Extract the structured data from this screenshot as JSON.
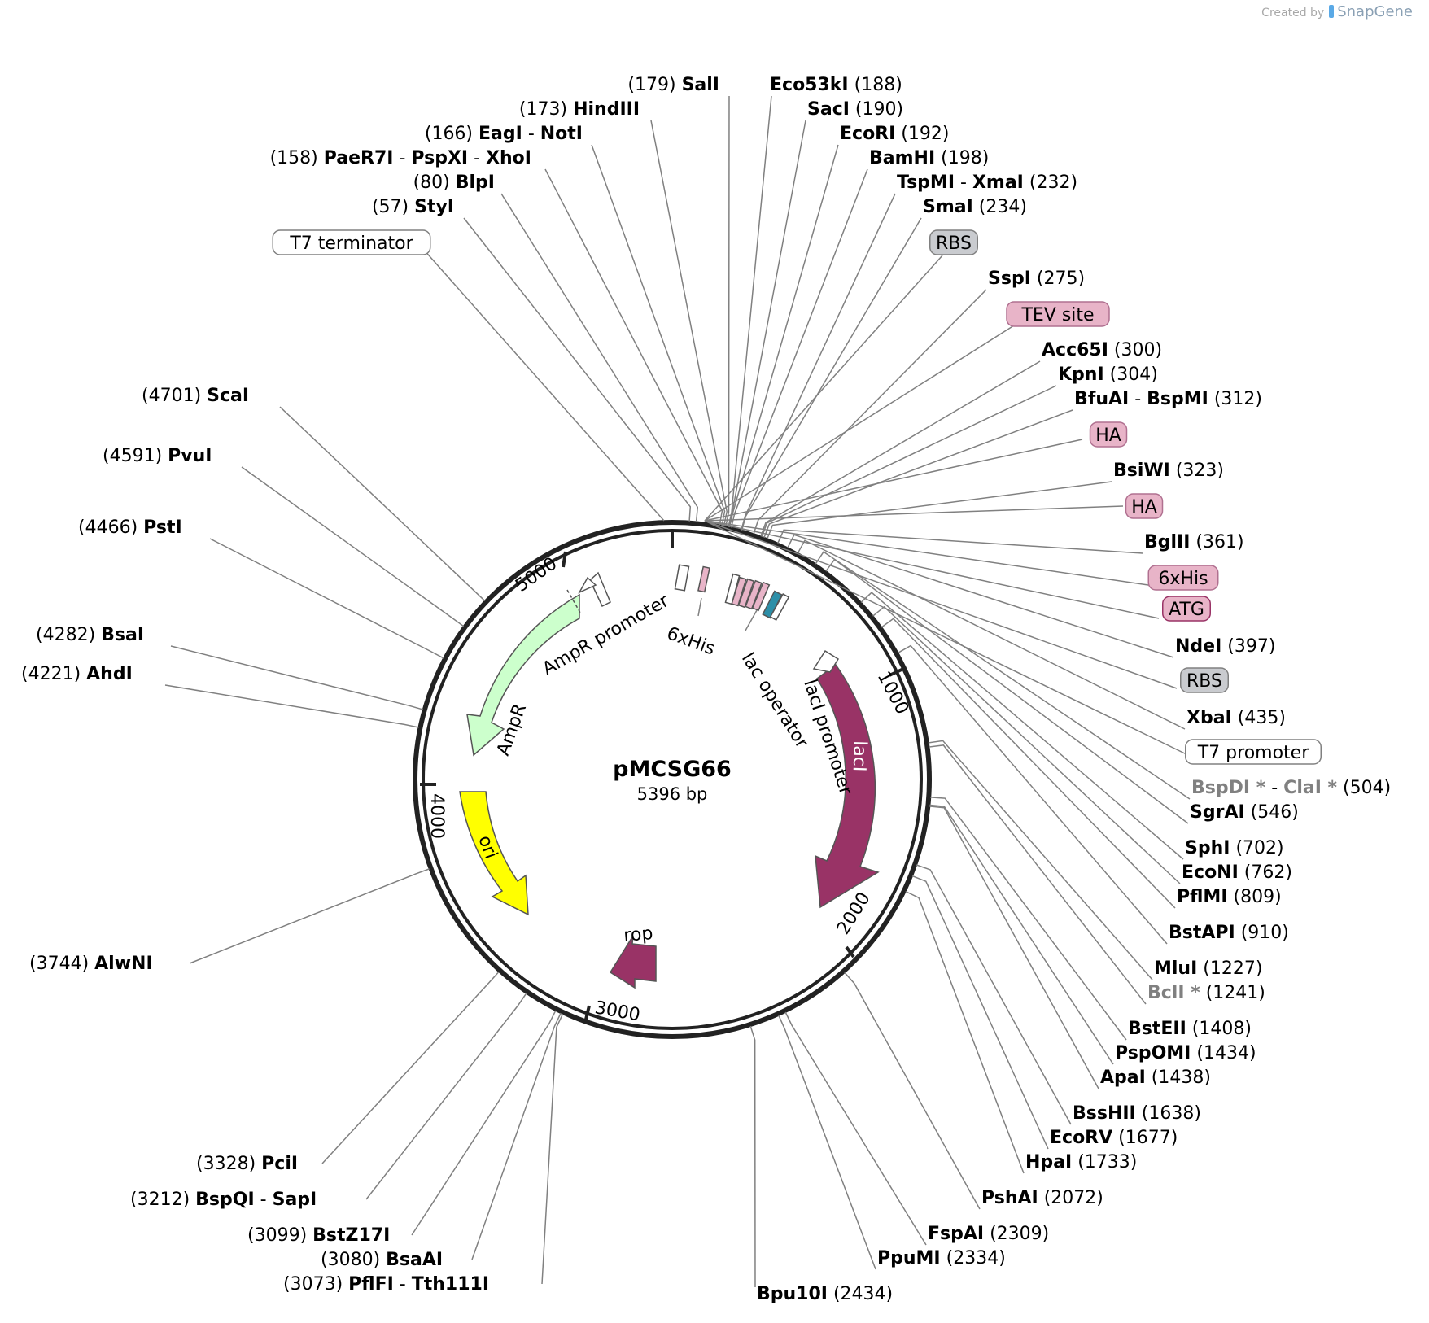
{
  "credit": {
    "prefix": "Created by",
    "brand": "SnapGene"
  },
  "plasmid": {
    "name": "pMCSG66",
    "size": "5396 bp"
  },
  "ticks": [
    "1000",
    "2000",
    "3000",
    "4000",
    "5000"
  ],
  "features": [
    {
      "name": "AmpR",
      "type": "CDS",
      "color": "#ccffcc"
    },
    {
      "name": "AmpR promoter",
      "type": "promoter"
    },
    {
      "name": "ori",
      "type": "rep_origin",
      "color": "#ffff00"
    },
    {
      "name": "rop",
      "type": "CDS",
      "color": "#993366"
    },
    {
      "name": "lacI",
      "type": "CDS",
      "color": "#993366"
    },
    {
      "name": "lacI promoter",
      "type": "promoter"
    },
    {
      "name": "lac operator",
      "type": "protein_bind"
    },
    {
      "name": "6xHis",
      "type": "tag"
    }
  ],
  "feature_labels": [
    {
      "text": "T7 terminator",
      "style": "white"
    },
    {
      "text": "RBS",
      "style": "gray"
    },
    {
      "text": "TEV site",
      "style": "pink"
    },
    {
      "text": "HA",
      "style": "pink"
    },
    {
      "text": "HA",
      "style": "pink"
    },
    {
      "text": "6xHis",
      "style": "pink"
    },
    {
      "text": "ATG",
      "style": "pinkdark"
    },
    {
      "text": "RBS",
      "style": "gray"
    },
    {
      "text": "T7 promoter",
      "style": "white"
    }
  ],
  "sites": [
    {
      "parts": [
        "SalI"
      ],
      "pos": "(179)"
    },
    {
      "parts": [
        "HindIII"
      ],
      "pos": "(173)"
    },
    {
      "parts": [
        "EagI",
        "NotI"
      ],
      "pos": "(166)"
    },
    {
      "parts": [
        "PaeR7I",
        "PspXI",
        "XhoI"
      ],
      "pos": "(158)"
    },
    {
      "parts": [
        "BlpI"
      ],
      "pos": "(80)"
    },
    {
      "parts": [
        "StyI"
      ],
      "pos": "(57)"
    },
    {
      "parts": [
        "Eco53kI"
      ],
      "pos": "(188)"
    },
    {
      "parts": [
        "SacI"
      ],
      "pos": "(190)"
    },
    {
      "parts": [
        "EcoRI"
      ],
      "pos": "(192)"
    },
    {
      "parts": [
        "BamHI"
      ],
      "pos": "(198)"
    },
    {
      "parts": [
        "TspMI",
        "XmaI"
      ],
      "pos": "(232)"
    },
    {
      "parts": [
        "SmaI"
      ],
      "pos": "(234)"
    },
    {
      "parts": [
        "SspI"
      ],
      "pos": "(275)"
    },
    {
      "parts": [
        "Acc65I"
      ],
      "pos": "(300)"
    },
    {
      "parts": [
        "KpnI"
      ],
      "pos": "(304)"
    },
    {
      "parts": [
        "BfuAI",
        "BspMI"
      ],
      "pos": "(312)"
    },
    {
      "parts": [
        "BsiWI"
      ],
      "pos": "(323)"
    },
    {
      "parts": [
        "BglII"
      ],
      "pos": "(361)"
    },
    {
      "parts": [
        "NdeI"
      ],
      "pos": "(397)"
    },
    {
      "parts": [
        "XbaI"
      ],
      "pos": "(435)"
    },
    {
      "parts": [
        "BspDI *",
        "ClaI *"
      ],
      "pos": "(504)",
      "gray": true
    },
    {
      "parts": [
        "SgrAI"
      ],
      "pos": "(546)"
    },
    {
      "parts": [
        "SphI"
      ],
      "pos": "(702)"
    },
    {
      "parts": [
        "EcoNI"
      ],
      "pos": "(762)"
    },
    {
      "parts": [
        "PflMI"
      ],
      "pos": "(809)"
    },
    {
      "parts": [
        "BstAPI"
      ],
      "pos": "(910)"
    },
    {
      "parts": [
        "MluI"
      ],
      "pos": "(1227)"
    },
    {
      "parts": [
        "BclI *"
      ],
      "pos": "(1241)",
      "gray": true
    },
    {
      "parts": [
        "BstEII"
      ],
      "pos": "(1408)"
    },
    {
      "parts": [
        "PspOMI"
      ],
      "pos": "(1434)"
    },
    {
      "parts": [
        "ApaI"
      ],
      "pos": "(1438)"
    },
    {
      "parts": [
        "BssHII"
      ],
      "pos": "(1638)"
    },
    {
      "parts": [
        "EcoRV"
      ],
      "pos": "(1677)"
    },
    {
      "parts": [
        "HpaI"
      ],
      "pos": "(1733)"
    },
    {
      "parts": [
        "PshAI"
      ],
      "pos": "(2072)"
    },
    {
      "parts": [
        "FspAI"
      ],
      "pos": "(2309)"
    },
    {
      "parts": [
        "PpuMI"
      ],
      "pos": "(2334)"
    },
    {
      "parts": [
        "Bpu10I"
      ],
      "pos": "(2434)"
    },
    {
      "parts": [
        "ScaI"
      ],
      "pos": "(4701)"
    },
    {
      "parts": [
        "PvuI"
      ],
      "pos": "(4591)"
    },
    {
      "parts": [
        "PstI"
      ],
      "pos": "(4466)"
    },
    {
      "parts": [
        "BsaI"
      ],
      "pos": "(4282)"
    },
    {
      "parts": [
        "AhdI"
      ],
      "pos": "(4221)"
    },
    {
      "parts": [
        "AlwNI"
      ],
      "pos": "(3744)"
    },
    {
      "parts": [
        "PciI"
      ],
      "pos": "(3328)"
    },
    {
      "parts": [
        "BspQI",
        "SapI"
      ],
      "pos": "(3212)"
    },
    {
      "parts": [
        "BstZ17I"
      ],
      "pos": "(3099)"
    },
    {
      "parts": [
        "BsaAI"
      ],
      "pos": "(3080)"
    },
    {
      "parts": [
        "PflFI",
        "Tth111I"
      ],
      "pos": "(3073)"
    }
  ]
}
